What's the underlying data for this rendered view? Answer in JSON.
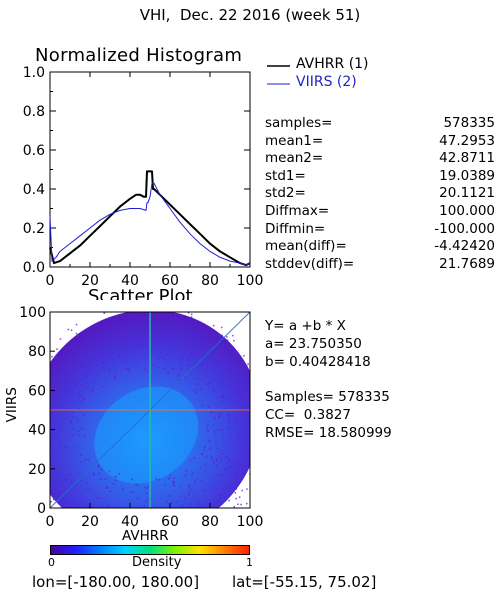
{
  "header": {
    "title": "VHI,  Dec. 22 2016 (week 51)"
  },
  "colors": {
    "series1": "#000000",
    "series2": "#1f1fd0",
    "diagonal": "#1f6fd0",
    "crosshair_v": "#20c0a0",
    "crosshair_h": "#f07040"
  },
  "histogram": {
    "chart_data": {
      "type": "line",
      "title": "Normalized Histogram",
      "xlim": [
        0,
        100
      ],
      "ylim": [
        0,
        1.0
      ],
      "x_ticks": [
        "0",
        "20",
        "40",
        "60",
        "80",
        "100"
      ],
      "y_ticks": [
        "0.0",
        "0.2",
        "0.4",
        "0.6",
        "0.8",
        "1.0"
      ],
      "legend_placement": "top-right",
      "series": [
        {
          "name": "AVHRR (1)",
          "x": [
            0,
            2,
            5,
            10,
            15,
            20,
            25,
            30,
            35,
            40,
            43,
            45,
            47,
            48,
            48.5,
            49,
            50,
            51,
            51.5,
            52,
            55,
            60,
            65,
            70,
            75,
            80,
            85,
            90,
            95,
            98,
            100
          ],
          "y": [
            0.1,
            0.02,
            0.03,
            0.07,
            0.11,
            0.16,
            0.21,
            0.26,
            0.31,
            0.35,
            0.37,
            0.37,
            0.36,
            0.36,
            0.49,
            0.49,
            0.49,
            0.49,
            0.4,
            0.4,
            0.37,
            0.32,
            0.27,
            0.22,
            0.17,
            0.12,
            0.08,
            0.05,
            0.02,
            0.01,
            0.02
          ]
        },
        {
          "name": "VIIRS (2)",
          "x": [
            0,
            1,
            3,
            5,
            10,
            15,
            20,
            25,
            30,
            35,
            40,
            45,
            48,
            48.5,
            49,
            50,
            51,
            52,
            55,
            60,
            65,
            70,
            75,
            80,
            85,
            90,
            95,
            98,
            100
          ],
          "y": [
            0.26,
            0.03,
            0.05,
            0.08,
            0.12,
            0.16,
            0.2,
            0.24,
            0.27,
            0.29,
            0.3,
            0.3,
            0.29,
            0.33,
            0.33,
            0.36,
            0.43,
            0.43,
            0.37,
            0.3,
            0.23,
            0.17,
            0.12,
            0.08,
            0.05,
            0.03,
            0.02,
            0.01,
            0.02
          ]
        }
      ]
    }
  },
  "stats": [
    {
      "label": "samples=",
      "value": "578335"
    },
    {
      "label": "mean1=",
      "value": "47.2953"
    },
    {
      "label": "mean2=",
      "value": "42.8711"
    },
    {
      "label": "std1=",
      "value": "19.0389"
    },
    {
      "label": "std2=",
      "value": "20.1121"
    },
    {
      "label": "Diffmax=",
      "value": "100.000"
    },
    {
      "label": "Diffmin=",
      "value": "-100.000"
    },
    {
      "label": "mean(diff)=",
      "value": "-4.42420"
    },
    {
      "label": "stddev(diff)=",
      "value": "21.7689"
    }
  ],
  "scatter": {
    "chart_data": {
      "type": "heatmap",
      "title": "Scatter Plot",
      "xlabel": "AVHRR",
      "ylabel": "VIIRS",
      "xlim": [
        0,
        100
      ],
      "ylim": [
        0,
        100
      ],
      "x_ticks": [
        "0",
        "20",
        "40",
        "60",
        "80",
        "100"
      ],
      "y_ticks": [
        "0",
        "20",
        "40",
        "60",
        "80",
        "100"
      ],
      "density_center": [
        47.3,
        42.9
      ],
      "crosshair": [
        50,
        50
      ]
    },
    "regression": {
      "formula": "Y= a +b * X",
      "a_label": "a= 23.750350",
      "b_label": "b= 0.40428418",
      "samples_label": "Samples= 578335",
      "cc_label": "CC=  0.3827",
      "rmse_label": "RMSE= 18.580999"
    }
  },
  "colorbar": {
    "label": "Density",
    "min_label": "0",
    "max_label": "1",
    "stops": [
      "#4b00a0",
      "#2020ff",
      "#0080ff",
      "#00d0ff",
      "#00e080",
      "#80f000",
      "#ffe000",
      "#ff8000",
      "#ff2000"
    ]
  },
  "footer": {
    "lon_label": "lon=[-180.00, 180.00]",
    "lat_label": "lat=[-55.15, 75.02]"
  }
}
